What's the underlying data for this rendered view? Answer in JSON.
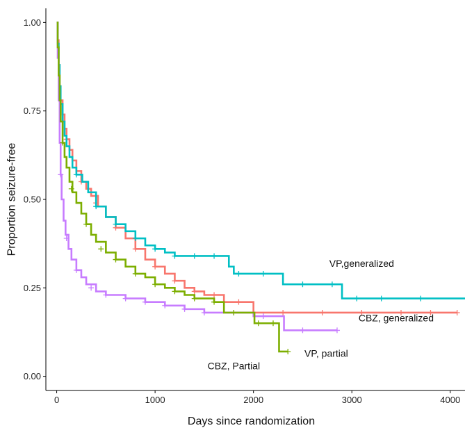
{
  "chart_data": {
    "type": "line",
    "subtype": "step-survival",
    "title": "",
    "xlabel": "Days since randomization",
    "ylabel": "Proportion seizure-free",
    "xlim": [
      -110,
      4150
    ],
    "ylim": [
      -0.04,
      1.04
    ],
    "x_ticks": [
      0,
      1000,
      2000,
      3000,
      4000
    ],
    "x_tick_labels": [
      "0",
      "1000",
      "2000",
      "3000",
      "4000"
    ],
    "y_ticks": [
      0.0,
      0.25,
      0.5,
      0.75,
      1.0
    ],
    "y_tick_labels": [
      "0.00",
      "0.25",
      "0.50",
      "0.75",
      "1.00"
    ],
    "grid": false,
    "legend": "none",
    "censor_mark": "+",
    "series": [
      {
        "key": "cbz-generalized",
        "color": "#F8766D",
        "points": [
          [
            0,
            1.0
          ],
          [
            10,
            0.95
          ],
          [
            20,
            0.88
          ],
          [
            30,
            0.82
          ],
          [
            40,
            0.78
          ],
          [
            60,
            0.74
          ],
          [
            80,
            0.7
          ],
          [
            100,
            0.67
          ],
          [
            130,
            0.64
          ],
          [
            160,
            0.61
          ],
          [
            200,
            0.58
          ],
          [
            250,
            0.55
          ],
          [
            300,
            0.53
          ],
          [
            350,
            0.51
          ],
          [
            420,
            0.48
          ],
          [
            500,
            0.45
          ],
          [
            600,
            0.42
          ],
          [
            700,
            0.39
          ],
          [
            800,
            0.36
          ],
          [
            900,
            0.33
          ],
          [
            1000,
            0.31
          ],
          [
            1100,
            0.29
          ],
          [
            1200,
            0.27
          ],
          [
            1300,
            0.25
          ],
          [
            1400,
            0.24
          ],
          [
            1500,
            0.23
          ],
          [
            1700,
            0.21
          ],
          [
            2000,
            0.18
          ],
          [
            4070,
            0.18
          ]
        ],
        "censors": [
          [
            100,
            0.67
          ],
          [
            250,
            0.55
          ],
          [
            400,
            0.49
          ],
          [
            600,
            0.42
          ],
          [
            800,
            0.36
          ],
          [
            1000,
            0.31
          ],
          [
            1200,
            0.27
          ],
          [
            1400,
            0.24
          ],
          [
            1600,
            0.23
          ],
          [
            1850,
            0.21
          ],
          [
            2300,
            0.18
          ],
          [
            2700,
            0.18
          ],
          [
            3100,
            0.18
          ],
          [
            3500,
            0.18
          ],
          [
            3800,
            0.18
          ],
          [
            4070,
            0.18
          ]
        ]
      },
      {
        "key": "vp-generalized",
        "color": "#00BFC4",
        "points": [
          [
            0,
            1.0
          ],
          [
            10,
            0.94
          ],
          [
            20,
            0.88
          ],
          [
            30,
            0.82
          ],
          [
            40,
            0.77
          ],
          [
            60,
            0.72
          ],
          [
            80,
            0.68
          ],
          [
            100,
            0.65
          ],
          [
            130,
            0.62
          ],
          [
            160,
            0.59
          ],
          [
            200,
            0.57
          ],
          [
            260,
            0.55
          ],
          [
            320,
            0.52
          ],
          [
            400,
            0.48
          ],
          [
            500,
            0.45
          ],
          [
            600,
            0.43
          ],
          [
            700,
            0.41
          ],
          [
            800,
            0.39
          ],
          [
            900,
            0.37
          ],
          [
            1000,
            0.36
          ],
          [
            1100,
            0.35
          ],
          [
            1200,
            0.34
          ],
          [
            1700,
            0.34
          ],
          [
            1750,
            0.31
          ],
          [
            1800,
            0.29
          ],
          [
            2250,
            0.29
          ],
          [
            2300,
            0.26
          ],
          [
            2850,
            0.26
          ],
          [
            2900,
            0.22
          ],
          [
            4150,
            0.22
          ]
        ],
        "censors": [
          [
            60,
            0.72
          ],
          [
            200,
            0.57
          ],
          [
            400,
            0.48
          ],
          [
            600,
            0.43
          ],
          [
            800,
            0.39
          ],
          [
            1000,
            0.36
          ],
          [
            1200,
            0.34
          ],
          [
            1400,
            0.34
          ],
          [
            1600,
            0.34
          ],
          [
            1850,
            0.29
          ],
          [
            2100,
            0.29
          ],
          [
            2500,
            0.26
          ],
          [
            2800,
            0.26
          ],
          [
            3050,
            0.22
          ],
          [
            3300,
            0.22
          ],
          [
            3700,
            0.22
          ]
        ]
      },
      {
        "key": "vp-partial",
        "color": "#C77CFF",
        "points": [
          [
            0,
            1.0
          ],
          [
            10,
            0.9
          ],
          [
            20,
            0.78
          ],
          [
            30,
            0.66
          ],
          [
            40,
            0.57
          ],
          [
            50,
            0.5
          ],
          [
            70,
            0.44
          ],
          [
            90,
            0.4
          ],
          [
            120,
            0.36
          ],
          [
            150,
            0.33
          ],
          [
            200,
            0.3
          ],
          [
            250,
            0.28
          ],
          [
            300,
            0.26
          ],
          [
            400,
            0.24
          ],
          [
            500,
            0.23
          ],
          [
            700,
            0.22
          ],
          [
            900,
            0.21
          ],
          [
            1100,
            0.2
          ],
          [
            1300,
            0.19
          ],
          [
            1500,
            0.18
          ],
          [
            1800,
            0.18
          ],
          [
            2000,
            0.17
          ],
          [
            2300,
            0.17
          ],
          [
            2310,
            0.13
          ],
          [
            2850,
            0.13
          ]
        ],
        "censors": [
          [
            40,
            0.57
          ],
          [
            100,
            0.39
          ],
          [
            200,
            0.3
          ],
          [
            350,
            0.25
          ],
          [
            500,
            0.23
          ],
          [
            700,
            0.22
          ],
          [
            900,
            0.21
          ],
          [
            1100,
            0.2
          ],
          [
            1300,
            0.19
          ],
          [
            1500,
            0.18
          ],
          [
            1800,
            0.18
          ],
          [
            2100,
            0.17
          ],
          [
            2500,
            0.13
          ],
          [
            2850,
            0.13
          ]
        ]
      },
      {
        "key": "cbz-partial",
        "color": "#7CAE00",
        "points": [
          [
            0,
            1.0
          ],
          [
            10,
            0.93
          ],
          [
            20,
            0.85
          ],
          [
            30,
            0.78
          ],
          [
            40,
            0.72
          ],
          [
            60,
            0.66
          ],
          [
            80,
            0.62
          ],
          [
            100,
            0.59
          ],
          [
            130,
            0.55
          ],
          [
            160,
            0.52
          ],
          [
            200,
            0.49
          ],
          [
            250,
            0.46
          ],
          [
            300,
            0.43
          ],
          [
            350,
            0.4
          ],
          [
            400,
            0.38
          ],
          [
            500,
            0.35
          ],
          [
            600,
            0.33
          ],
          [
            700,
            0.31
          ],
          [
            800,
            0.29
          ],
          [
            900,
            0.28
          ],
          [
            1000,
            0.26
          ],
          [
            1100,
            0.25
          ],
          [
            1200,
            0.24
          ],
          [
            1300,
            0.23
          ],
          [
            1400,
            0.22
          ],
          [
            1600,
            0.21
          ],
          [
            1700,
            0.18
          ],
          [
            2000,
            0.18
          ],
          [
            2010,
            0.15
          ],
          [
            2250,
            0.15
          ],
          [
            2260,
            0.07
          ],
          [
            2350,
            0.07
          ]
        ],
        "censors": [
          [
            60,
            0.66
          ],
          [
            150,
            0.53
          ],
          [
            300,
            0.43
          ],
          [
            450,
            0.36
          ],
          [
            600,
            0.33
          ],
          [
            800,
            0.29
          ],
          [
            1000,
            0.26
          ],
          [
            1200,
            0.24
          ],
          [
            1400,
            0.22
          ],
          [
            1600,
            0.21
          ],
          [
            1800,
            0.18
          ],
          [
            2050,
            0.15
          ],
          [
            2200,
            0.15
          ],
          [
            2350,
            0.07
          ]
        ]
      }
    ],
    "annotations": [
      {
        "key": "vp-generalized",
        "text": "VP,generalized",
        "x": 3100,
        "y": 0.31
      },
      {
        "key": "cbz-generalized",
        "text": "CBZ, generalized",
        "x": 3450,
        "y": 0.155
      },
      {
        "key": "vp-partial",
        "text": "VP, partial",
        "x": 2740,
        "y": 0.055
      },
      {
        "key": "cbz-partial",
        "text": "CBZ, Partial",
        "x": 1800,
        "y": 0.02
      }
    ]
  }
}
